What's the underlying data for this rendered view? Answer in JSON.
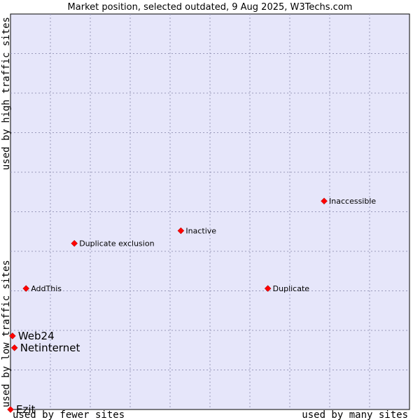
{
  "chart_data": {
    "type": "scatter",
    "title": "Market position, selected outdated, 9 Aug 2025, W3Techs.com",
    "xlabel_low": "used by fewer sites",
    "xlabel_high": "used by many sites",
    "ylabel_low": "used by low traffic sites",
    "ylabel_high": "used by high traffic sites",
    "xlim": [
      0,
      10
    ],
    "ylim": [
      0,
      10
    ],
    "grid": true,
    "colors": {
      "plot_bg": "#e6e6fa",
      "grid": "#9999bb",
      "point": "#ff0000",
      "point_edge": "#990000"
    },
    "points": [
      {
        "name": "Inaccessible",
        "x": 7.86,
        "y": 5.27,
        "emphasis": false
      },
      {
        "name": "Inactive",
        "x": 4.27,
        "y": 4.52,
        "emphasis": false
      },
      {
        "name": "Duplicate exclusion",
        "x": 1.6,
        "y": 4.2,
        "emphasis": false
      },
      {
        "name": "AddThis",
        "x": 0.39,
        "y": 3.06,
        "emphasis": false
      },
      {
        "name": "Duplicate",
        "x": 6.45,
        "y": 3.06,
        "emphasis": false
      },
      {
        "name": "Web24",
        "x": 0.05,
        "y": 1.86,
        "emphasis": true
      },
      {
        "name": "Netinternet",
        "x": 0.1,
        "y": 1.56,
        "emphasis": true
      },
      {
        "name": "Ezit",
        "x": 0.0,
        "y": 0.0,
        "emphasis": true
      }
    ]
  }
}
